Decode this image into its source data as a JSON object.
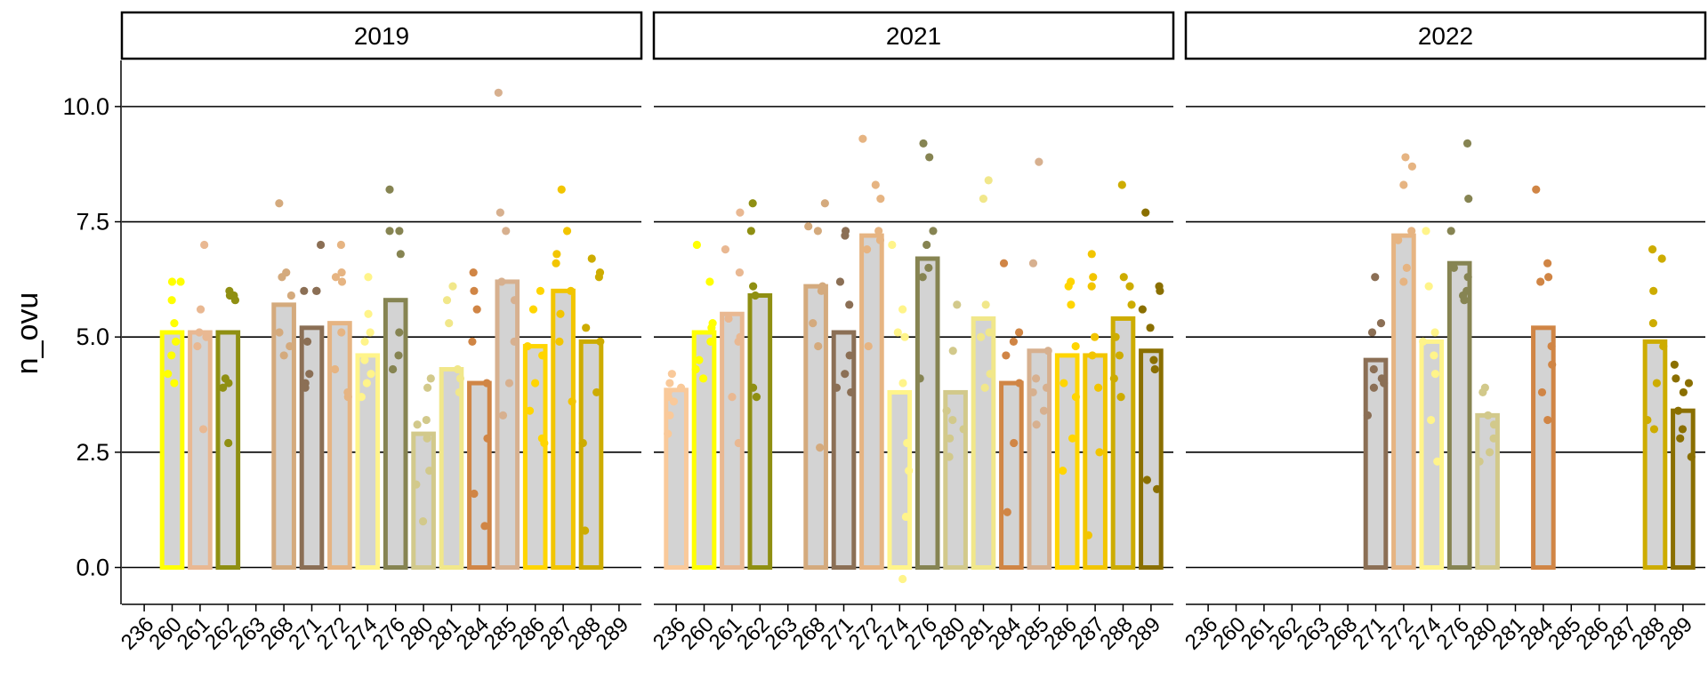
{
  "chart_data": {
    "type": "bar",
    "ylabel": "n_ovu",
    "xlabel": "",
    "ylim": [
      -0.8,
      11.0
    ],
    "yticks": [
      "0.0",
      "2.5",
      "5.0",
      "7.5",
      "10.0"
    ],
    "ytick_values": [
      0,
      2.5,
      5,
      7.5,
      10
    ],
    "categories": [
      "236",
      "260",
      "261",
      "262",
      "263",
      "268",
      "271",
      "272",
      "274",
      "276",
      "280",
      "281",
      "284",
      "285",
      "286",
      "287",
      "288",
      "289"
    ],
    "colors": {
      "236": "#f9c99a",
      "260": "#ffff00",
      "261": "#e9b892",
      "262": "#8f8f12",
      "263": "#f4d27a",
      "268": "#d4aa7d",
      "271": "#8b6f55",
      "272": "#e6b482",
      "274": "#fff48a",
      "276": "#868452",
      "280": "#d2c98b",
      "281": "#f1e78a",
      "284": "#d08545",
      "285": "#d7b08f",
      "286": "#ffd500",
      "287": "#f2c500",
      "288": "#cdac00",
      "289": "#8a6f00"
    },
    "bar_fill": "#d3d3d3",
    "grid": true,
    "panels": [
      {
        "title": "2019",
        "values": {
          "260": 5.1,
          "261": 5.1,
          "262": 5.1,
          "268": 5.7,
          "271": 5.2,
          "272": 5.3,
          "274": 4.6,
          "276": 5.8,
          "280": 2.9,
          "281": 4.3,
          "284": 4.0,
          "285": 6.2,
          "286": 4.8,
          "287": 6.0,
          "288": 4.9
        },
        "points": {
          "260": [
            6.2,
            6.2,
            5.8,
            5.3,
            4.9,
            4.6,
            4.2,
            4.0
          ],
          "261": [
            7.0,
            5.6,
            5.1,
            5.0,
            4.8,
            3.0
          ],
          "262": [
            6.0,
            5.9,
            5.9,
            5.8,
            4.1,
            4.0,
            3.9,
            2.7
          ],
          "268": [
            7.9,
            6.4,
            6.3,
            5.9,
            5.1,
            4.8,
            4.6
          ],
          "271": [
            7.0,
            6.0,
            6.0,
            6.0,
            4.9,
            4.2,
            4.0,
            3.9
          ],
          "272": [
            7.0,
            6.4,
            6.3,
            6.2,
            5.1,
            4.3,
            3.8,
            3.7
          ],
          "274": [
            6.3,
            5.5,
            5.1,
            4.9,
            4.5,
            4.2,
            4.0,
            3.7
          ],
          "276": [
            8.2,
            7.3,
            7.3,
            6.8,
            5.1,
            4.6,
            4.3
          ],
          "280": [
            4.1,
            3.9,
            3.2,
            3.1,
            2.8,
            2.1,
            1.8,
            1.0
          ],
          "281": [
            6.1,
            5.8,
            5.3,
            4.3,
            4.1,
            3.8
          ],
          "284": [
            6.4,
            6.0,
            5.6,
            4.9,
            4.0,
            2.8,
            1.6,
            0.9
          ],
          "285": [
            10.3,
            7.7,
            7.3,
            6.2,
            5.8,
            4.9,
            4.0,
            3.3
          ],
          "286": [
            6.0,
            5.6,
            4.8,
            4.6,
            4.0,
            3.4,
            2.8,
            2.7
          ],
          "287": [
            8.2,
            7.3,
            6.8,
            6.6,
            6.0,
            5.5,
            4.9,
            3.6
          ],
          "288": [
            6.7,
            6.4,
            6.3,
            5.2,
            4.9,
            3.8,
            2.7,
            0.8
          ]
        }
      },
      {
        "title": "2021",
        "values": {
          "236": 3.85,
          "260": 5.1,
          "261": 5.5,
          "262": 5.9,
          "268": 6.1,
          "271": 5.1,
          "272": 7.2,
          "274": 3.8,
          "276": 6.7,
          "280": 3.8,
          "281": 5.4,
          "284": 4.0,
          "285": 4.7,
          "286": 4.6,
          "287": 4.6,
          "288": 5.4,
          "289": 4.7
        },
        "points": {
          "236": [
            4.2,
            4.0,
            3.9,
            3.8,
            3.7,
            3.6,
            3.3,
            2.9
          ],
          "260": [
            7.0,
            6.2,
            5.3,
            5.2,
            4.9,
            4.5,
            4.3,
            4.1
          ],
          "261": [
            7.7,
            6.9,
            6.4,
            5.4,
            5.0,
            4.9,
            3.7,
            2.7
          ],
          "262": [
            7.9,
            7.3,
            6.1,
            5.9,
            3.9,
            3.7
          ],
          "268": [
            7.9,
            7.4,
            7.3,
            6.1,
            6.0,
            5.3,
            4.8,
            2.6
          ],
          "271": [
            7.3,
            7.2,
            6.2,
            5.7,
            4.6,
            4.2,
            3.9,
            3.8
          ],
          "272": [
            9.3,
            8.3,
            8.0,
            7.3,
            7.1,
            6.9,
            4.8
          ],
          "274": [
            7.0,
            5.6,
            5.1,
            5.0,
            4.0,
            2.7,
            2.1,
            1.1,
            -0.25
          ],
          "276": [
            9.2,
            8.9,
            7.3,
            7.0,
            6.5,
            6.3,
            4.1
          ],
          "280": [
            5.7,
            4.7,
            3.4,
            3.2,
            3.0,
            2.8,
            2.4
          ],
          "281": [
            8.4,
            8.0,
            5.7,
            5.1,
            5.0,
            4.2,
            3.9
          ],
          "284": [
            6.6,
            5.1,
            4.9,
            4.6,
            4.0,
            2.7,
            1.2
          ],
          "285": [
            8.8,
            6.6,
            4.7,
            4.1,
            3.9,
            3.8,
            3.4,
            3.1
          ],
          "286": [
            6.2,
            6.1,
            5.7,
            4.8,
            4.0,
            3.7,
            2.8,
            2.1
          ],
          "287": [
            6.8,
            6.3,
            6.1,
            5.0,
            4.6,
            3.9,
            2.5,
            0.7
          ],
          "288": [
            8.3,
            6.3,
            6.1,
            5.7,
            5.0,
            4.6,
            4.1,
            3.7
          ],
          "289": [
            7.7,
            6.1,
            6.0,
            5.6,
            5.2,
            4.5,
            4.3,
            1.9,
            1.7
          ]
        }
      },
      {
        "title": "2022",
        "values": {
          "271": 4.5,
          "272": 7.2,
          "274": 4.9,
          "276": 6.6,
          "280": 3.3,
          "284": 5.2,
          "288": 4.9,
          "289": 3.4
        },
        "points": {
          "271": [
            6.3,
            5.3,
            5.1,
            4.3,
            4.1,
            4.0,
            3.9,
            3.3
          ],
          "272": [
            8.9,
            8.7,
            8.3,
            7.3,
            7.1,
            6.5,
            6.2
          ],
          "274": [
            7.3,
            6.1,
            5.1,
            4.9,
            4.6,
            4.2,
            3.2,
            2.3
          ],
          "276": [
            9.2,
            8.0,
            7.3,
            6.5,
            6.3,
            6.0,
            5.9,
            5.8
          ],
          "280": [
            3.9,
            3.8,
            3.3,
            3.1,
            2.8,
            2.5,
            2.3
          ],
          "284": [
            8.2,
            6.6,
            6.3,
            6.2,
            4.8,
            4.4,
            3.8,
            3.2
          ],
          "288": [
            6.9,
            6.7,
            6.0,
            5.3,
            4.8,
            4.0,
            3.2,
            3.0
          ],
          "289": [
            4.4,
            4.1,
            4.0,
            3.8,
            3.4,
            3.0,
            2.8,
            2.4
          ]
        }
      }
    ]
  }
}
